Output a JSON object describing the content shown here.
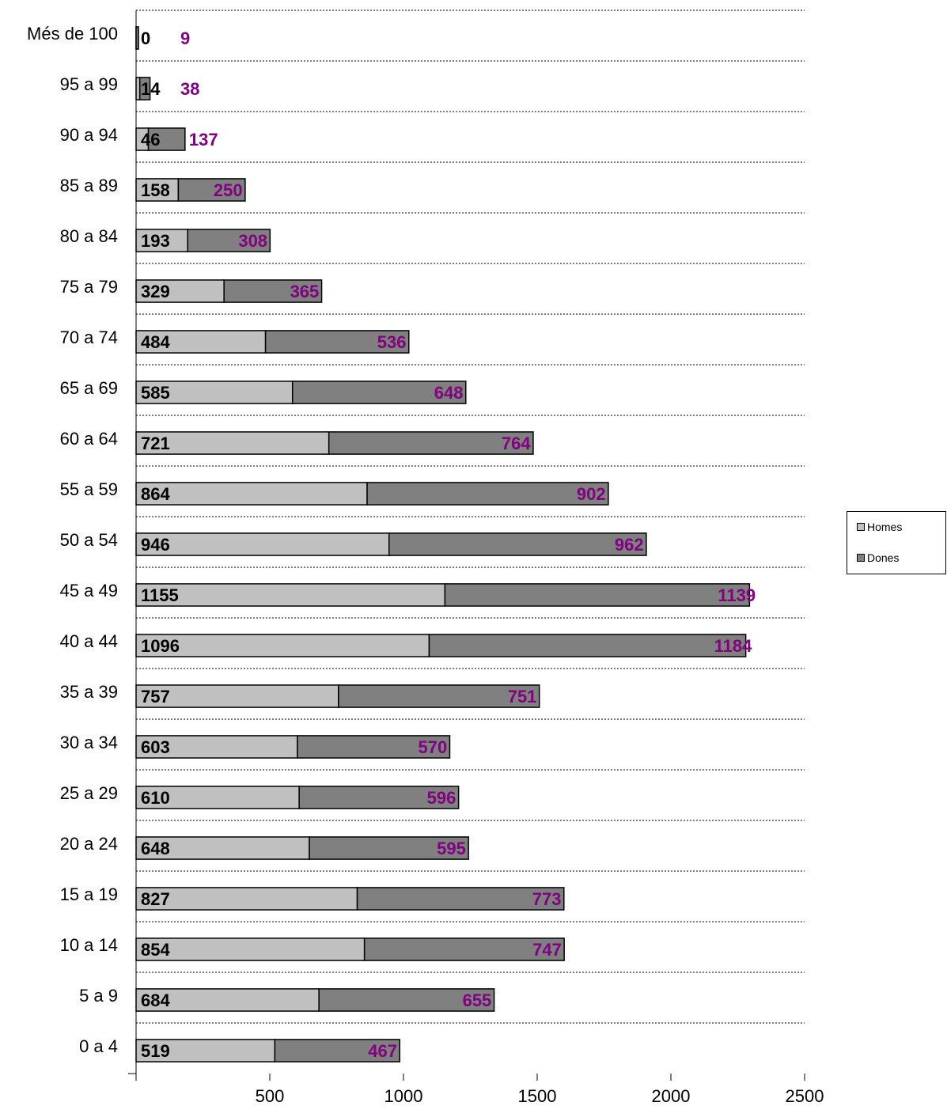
{
  "chart_data": {
    "type": "bar",
    "orientation": "horizontal",
    "stacked": true,
    "categories": [
      "Més de  100",
      "95 a 99",
      "90 a 94",
      "85 a 89",
      "80 a 84",
      "75 a 79",
      "70 a 74",
      "65 a 69",
      "60 a 64",
      "55 a 59",
      "50 a 54",
      "45 a 49",
      "40 a 44",
      "35 a 39",
      "30 a 34",
      "25 a 29",
      "20 a 24",
      "15 a 19",
      "10 a 14",
      "5 a 9",
      "0 a 4"
    ],
    "series": [
      {
        "name": "Homes",
        "color": "#c0c0c0",
        "values": [
          0,
          14,
          46,
          158,
          193,
          329,
          484,
          585,
          721,
          864,
          946,
          1155,
          1096,
          757,
          603,
          610,
          648,
          827,
          854,
          684,
          519
        ]
      },
      {
        "name": "Dones",
        "color": "#808080",
        "label_color": "#800080",
        "values": [
          9,
          38,
          137,
          250,
          308,
          365,
          536,
          648,
          764,
          902,
          962,
          1139,
          1184,
          751,
          570,
          596,
          595,
          773,
          747,
          655,
          467
        ]
      }
    ],
    "xlim": [
      0,
      2500
    ],
    "x_ticks": [
      "500",
      "1000",
      "1500",
      "2000",
      "2500"
    ],
    "grid": "horizontal dashed",
    "legend_position": "right"
  },
  "legend": {
    "homes_label": "Homes",
    "dones_label": "Dones",
    "homes_color": "#c0c0c0",
    "dones_color": "#808080"
  }
}
